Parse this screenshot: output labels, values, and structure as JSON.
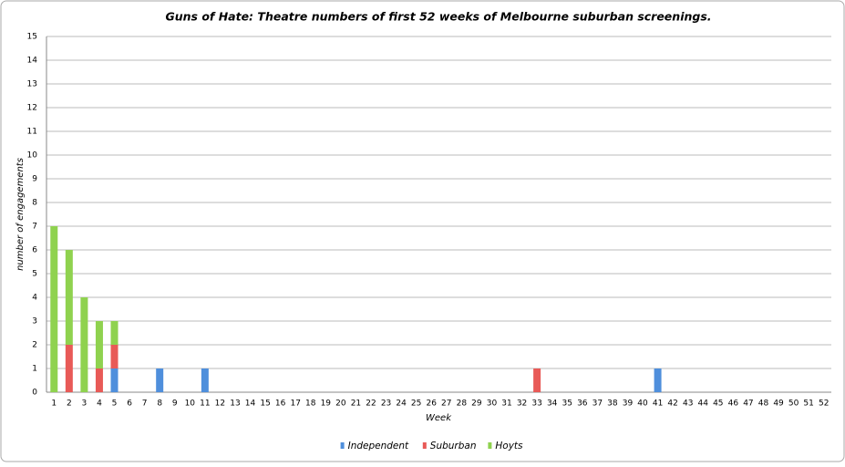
{
  "chart_data": {
    "type": "bar",
    "stacked": true,
    "title": "Guns of Hate: Theatre numbers of first 52 weeks of Melbourne suburban screenings.",
    "x_label": "Week",
    "y_label": "number of engagements",
    "categories": [
      1,
      2,
      3,
      4,
      5,
      6,
      7,
      8,
      9,
      10,
      11,
      12,
      13,
      14,
      15,
      16,
      17,
      18,
      19,
      20,
      21,
      22,
      23,
      24,
      25,
      26,
      27,
      28,
      29,
      30,
      31,
      32,
      33,
      34,
      35,
      36,
      37,
      38,
      39,
      40,
      41,
      42,
      43,
      44,
      45,
      46,
      47,
      48,
      49,
      50,
      51,
      52
    ],
    "series": [
      {
        "name": "Independent",
        "color": "#4f8fdc",
        "values": [
          0,
          0,
          0,
          0,
          1,
          0,
          0,
          1,
          0,
          0,
          1,
          0,
          0,
          0,
          0,
          0,
          0,
          0,
          0,
          0,
          0,
          0,
          0,
          0,
          0,
          0,
          0,
          0,
          0,
          0,
          0,
          0,
          0,
          0,
          0,
          0,
          0,
          0,
          0,
          0,
          1,
          0,
          0,
          0,
          0,
          0,
          0,
          0,
          0,
          0,
          0,
          0
        ]
      },
      {
        "name": "Suburban",
        "color": "#e85a57",
        "values": [
          0,
          2,
          0,
          1,
          1,
          0,
          0,
          0,
          0,
          0,
          0,
          0,
          0,
          0,
          0,
          0,
          0,
          0,
          0,
          0,
          0,
          0,
          0,
          0,
          0,
          0,
          0,
          0,
          0,
          0,
          0,
          0,
          1,
          0,
          0,
          0,
          0,
          0,
          0,
          0,
          0,
          0,
          0,
          0,
          0,
          0,
          0,
          0,
          0,
          0,
          0,
          0
        ]
      },
      {
        "name": "Hoyts",
        "color": "#8fd24f",
        "values": [
          7,
          4,
          4,
          2,
          1,
          0,
          0,
          0,
          0,
          0,
          0,
          0,
          0,
          0,
          0,
          0,
          0,
          0,
          0,
          0,
          0,
          0,
          0,
          0,
          0,
          0,
          0,
          0,
          0,
          0,
          0,
          0,
          0,
          0,
          0,
          0,
          0,
          0,
          0,
          0,
          0,
          0,
          0,
          0,
          0,
          0,
          0,
          0,
          0,
          0,
          0,
          0
        ]
      }
    ],
    "ylim": [
      0,
      15
    ],
    "yticks": [
      0,
      1,
      2,
      3,
      4,
      5,
      6,
      7,
      8,
      9,
      10,
      11,
      12,
      13,
      14,
      15
    ],
    "grid": true,
    "legend": "bottom"
  }
}
